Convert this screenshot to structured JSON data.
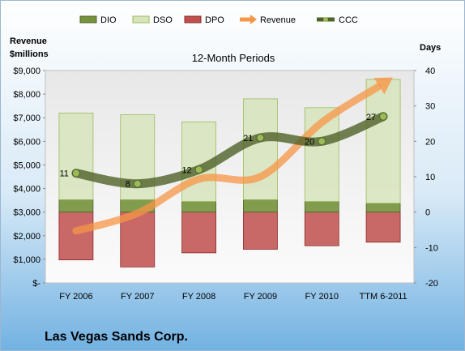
{
  "chart_data": {
    "type": "bar",
    "subtitle": "12-Month Periods",
    "company": "Las Vegas Sands Corp.",
    "ylabel_left": [
      "Revenue",
      "$millions"
    ],
    "ylabel_right": "Days",
    "categories": [
      "FY 2006",
      "FY 2007",
      "FY 2008",
      "FY 2009",
      "FY 2010",
      "TTM 6-2011"
    ],
    "ylim_left": [
      0,
      9000
    ],
    "ylim_right": [
      -20,
      40
    ],
    "left_ticks": [
      "$-",
      "$1,000",
      "$2,000",
      "$3,000",
      "$4,000",
      "$5,000",
      "$6,000",
      "$7,000",
      "$8,000",
      "$9,000"
    ],
    "right_ticks": [
      "-20",
      "-10",
      "0",
      "10",
      "20",
      "30",
      "40"
    ],
    "legend_position": "top",
    "series": [
      {
        "name": "DIO",
        "axis": "right",
        "kind": "stacked-bar",
        "color": "#76923C",
        "values": [
          3.5,
          3.5,
          3.0,
          3.5,
          3.0,
          2.5
        ]
      },
      {
        "name": "DSO",
        "axis": "right",
        "kind": "stacked-bar",
        "color": "#D7E4BD",
        "values": [
          24.5,
          24.0,
          22.5,
          28.5,
          26.5,
          35.0
        ]
      },
      {
        "name": "DPO",
        "axis": "right",
        "kind": "negative-bar",
        "color": "#C0504D",
        "values": [
          -13.5,
          -15.5,
          -11.5,
          -10.5,
          -9.5,
          -8.5
        ]
      },
      {
        "name": "Revenue",
        "axis": "left",
        "kind": "line-arrow",
        "color": "#F79646",
        "values": [
          2200,
          2950,
          4400,
          4500,
          6800,
          8450
        ]
      },
      {
        "name": "CCC",
        "axis": "right",
        "kind": "line",
        "color": "#4F6228",
        "values": [
          11,
          8,
          12,
          21,
          20,
          27
        ],
        "labels": [
          "11",
          "8",
          "12",
          "21",
          "20",
          "27"
        ]
      }
    ]
  }
}
